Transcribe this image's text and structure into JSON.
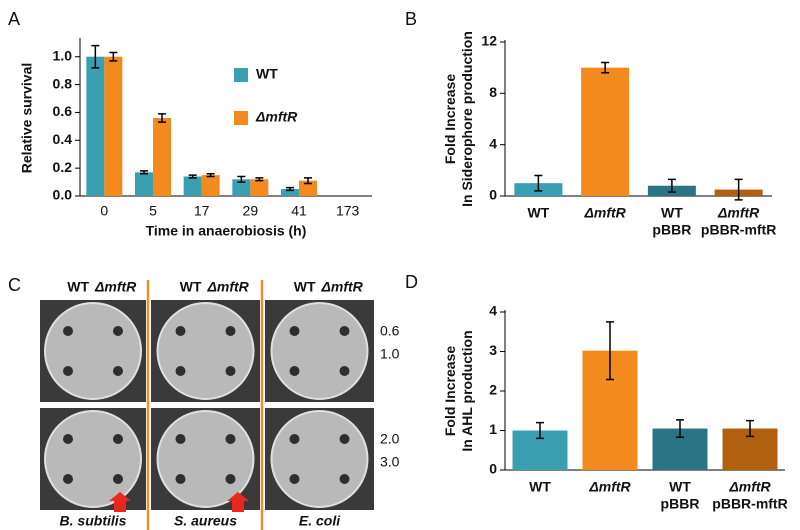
{
  "chart_data": [
    {
      "type": "grouped-bar",
      "label": "A",
      "y_label": [
        "Relative survival"
      ],
      "x_label": "Time in anaerobiosis (h)",
      "categories": [
        "0",
        "5",
        "17",
        "29",
        "41",
        "173"
      ],
      "series": [
        {
          "name": "WT",
          "color": "#3a9fb0",
          "values": [
            1.0,
            0.17,
            0.14,
            0.12,
            0.05,
            0
          ],
          "errors": [
            0.08,
            0.01,
            0.01,
            0.02,
            0.01,
            0
          ]
        },
        {
          "name": "ΔmftR",
          "color": "#f28a1e",
          "values": [
            1.0,
            0.56,
            0.15,
            0.12,
            0.11,
            0
          ],
          "errors": [
            0.03,
            0.03,
            0.01,
            0.01,
            0.02,
            0
          ]
        }
      ],
      "ylim": [
        0,
        1.12
      ],
      "yticks": [
        {
          "value": 0,
          "label": "0.0"
        },
        {
          "value": 0.2,
          "label": "0.2"
        },
        {
          "value": 0.4,
          "label": "0.4"
        },
        {
          "value": 0.6,
          "label": "0.6"
        },
        {
          "value": 0.8,
          "label": "0.8"
        },
        {
          "value": 1.0,
          "label": "1.0"
        }
      ]
    },
    {
      "type": "bar",
      "label": "B",
      "y_label": [
        "Fold Increase",
        "In Siderophore production"
      ],
      "categories": [
        [
          "WT"
        ],
        [
          "ΔmftR"
        ],
        [
          "WT",
          "pBBR"
        ],
        [
          "ΔmftR",
          "pBBR-mftR"
        ]
      ],
      "values": [
        1.0,
        10.0,
        0.8,
        0.5
      ],
      "errors": [
        0.6,
        0.4,
        0.5,
        0.8
      ],
      "colors": [
        "#3a9fb0",
        "#f28a1e",
        "#2a7585",
        "#b0600f"
      ],
      "ylim": [
        0,
        12
      ],
      "yticks": [
        0,
        4,
        8,
        12
      ]
    },
    {
      "type": "bar",
      "label": "D",
      "y_label": [
        "Fold Increase",
        "In AHL production"
      ],
      "categories": [
        [
          "WT"
        ],
        [
          "ΔmftR"
        ],
        [
          "WT",
          "pBBR"
        ],
        [
          "ΔmftR",
          "pBBR-mftR"
        ]
      ],
      "values": [
        1.0,
        3.02,
        1.05,
        1.05
      ],
      "errors": [
        0.2,
        0.73,
        0.22,
        0.2
      ],
      "colors": [
        "#3a9fb0",
        "#f28a1e",
        "#2a7585",
        "#b0600f"
      ],
      "ylim": [
        0,
        4
      ],
      "yticks": [
        0,
        1,
        2,
        3,
        4
      ]
    }
  ],
  "image_panel": {
    "label": "C",
    "column_headers": [
      [
        "WT",
        "ΔmftR"
      ],
      [
        "WT",
        "ΔmftR"
      ],
      [
        "WT",
        "ΔmftR"
      ]
    ],
    "row_labels": [
      [
        "0.6",
        "1.0"
      ],
      [
        "2.0",
        "3.0"
      ]
    ],
    "species": [
      "B. subtilis",
      "S. aureus",
      "E. coli"
    ]
  }
}
